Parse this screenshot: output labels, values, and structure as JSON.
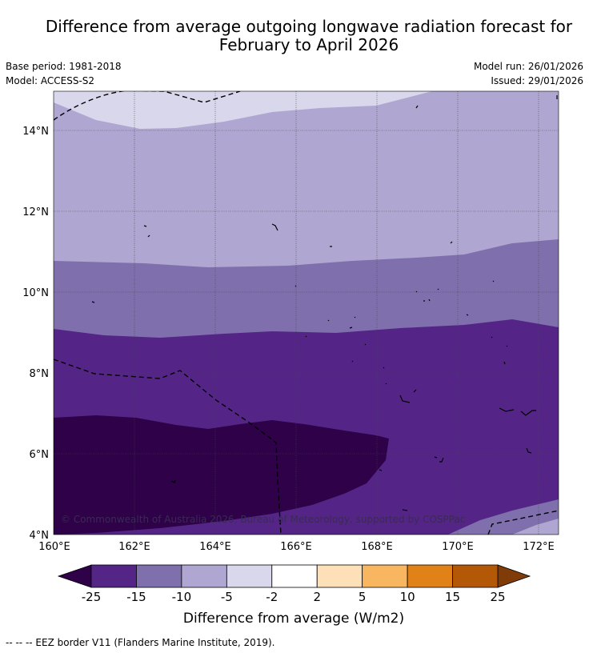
{
  "title_line1": "Difference from average outgoing longwave radiation forecast for",
  "title_line2": "February to April 2026",
  "meta_left": [
    "Base period: 1981-2018",
    "Model: ACCESS-S2"
  ],
  "meta_right": [
    "Model run: 26/01/2026",
    "Issued: 29/01/2026"
  ],
  "map": {
    "lon_ticks": [
      "160°E",
      "162°E",
      "164°E",
      "166°E",
      "168°E",
      "170°E",
      "172°E"
    ],
    "lat_ticks": [
      "14°N",
      "12°N",
      "10°N",
      "8°N",
      "6°N",
      "4°N"
    ],
    "copyright": "© Commonwealth of Australia 2026, Bureau of Meteorology, supported by COSPPac"
  },
  "colorbar": {
    "label": "Difference from average (W/m2)",
    "ticks": [
      "-25",
      "-15",
      "-10",
      "-5",
      "-2",
      "2",
      "5",
      "10",
      "15",
      "25"
    ],
    "colors": [
      "#542587",
      "#7f70ad",
      "#afa7d1",
      "#d9d7ec",
      "#ffffff",
      "#fde0b8",
      "#f9b660",
      "#e18219",
      "#b35807"
    ],
    "under_color": "#2e0148",
    "over_color": "#7f3b08"
  },
  "footer": "--  --  -- EEZ border V11 (Flanders Marine Institute, 2019)."
}
